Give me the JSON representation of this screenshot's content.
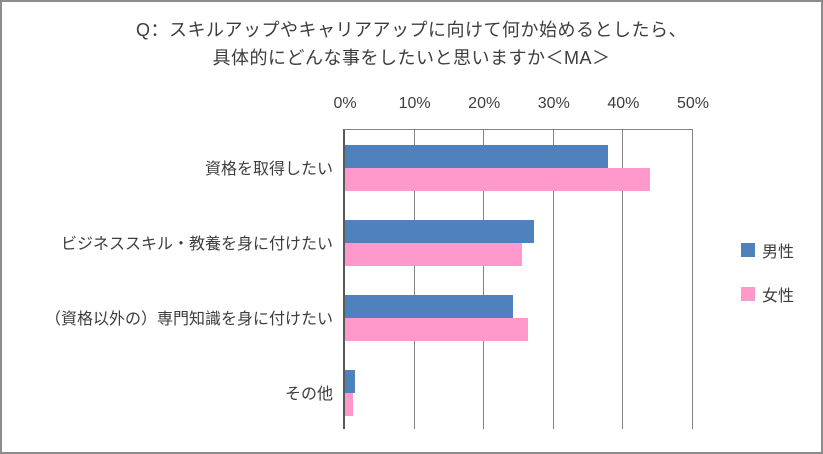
{
  "chart_data": {
    "type": "bar",
    "orientation": "horizontal",
    "title": "Q：スキルアップやキャリアアップに向けて何か始めるとしたら、具体的にどんな事をしたいと思いますか＜MA＞",
    "title_lines": [
      "Q：スキルアップやキャリアアップに向けて何か始めるとしたら、",
      "具体的にどんな事をしたいと思いますか＜MA＞"
    ],
    "categories": [
      "資格を取得したい",
      "ビジネススキル・教養を身に付けたい",
      "（資格以外の）専門知識を身に付けたい",
      "その他"
    ],
    "series": [
      {
        "name": "男性",
        "color": "#4F81BD",
        "values": [
          37.8,
          27.2,
          24.1,
          1.4
        ]
      },
      {
        "name": "女性",
        "color": "#FF99CC",
        "values": [
          43.8,
          25.4,
          26.3,
          1.1
        ]
      }
    ],
    "x_axis": {
      "position": "top",
      "min": 0,
      "max": 50,
      "tick_step": 10,
      "unit": "%",
      "ticks": [
        "0%",
        "10%",
        "20%",
        "30%",
        "40%",
        "50%"
      ]
    },
    "grid": true,
    "legend_position": "right",
    "colors": {
      "male": "#4F81BD",
      "female": "#FF99CC",
      "gridline": "#848484",
      "axis_line": "#595959",
      "text": "#3d3d3d",
      "frame_border": "#8c8c8c"
    }
  }
}
